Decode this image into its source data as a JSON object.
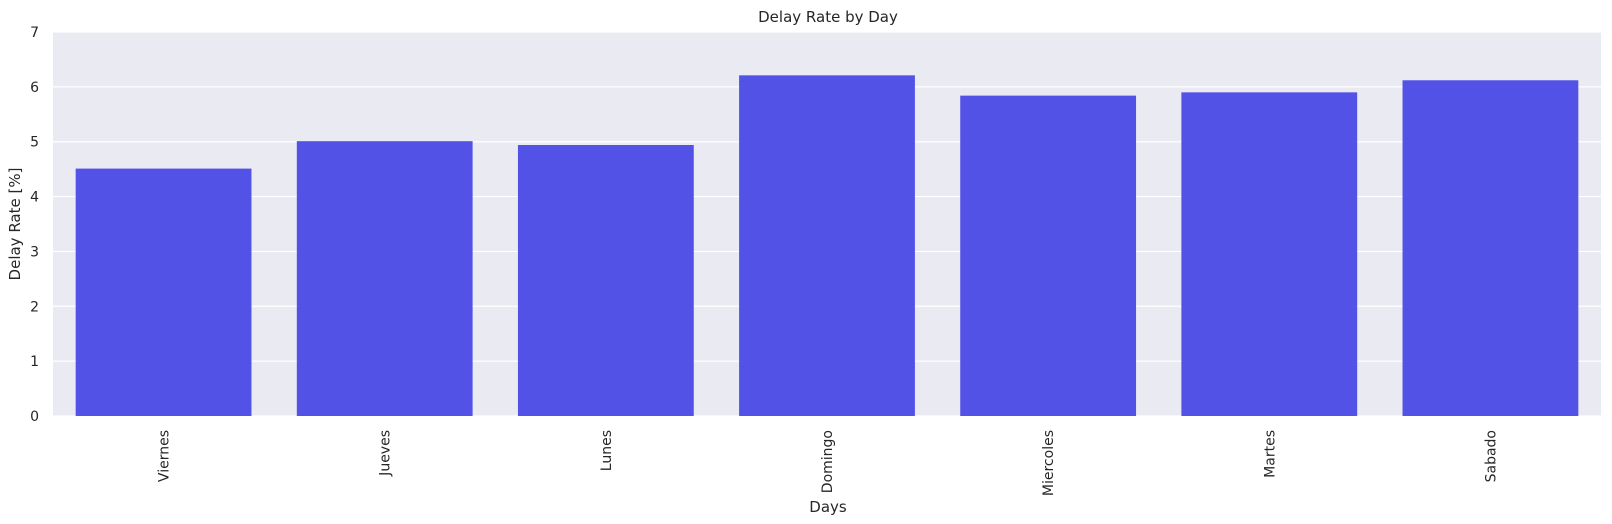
{
  "chart_data": {
    "type": "bar",
    "title": "Delay Rate by Day",
    "xlabel": "Days",
    "ylabel": "Delay Rate [%]",
    "categories": [
      "Viernes",
      "Jueves",
      "Lunes",
      "Domingo",
      "Miercoles",
      "Martes",
      "Sabado"
    ],
    "values": [
      4.51,
      5.01,
      4.94,
      6.21,
      5.84,
      5.9,
      6.12
    ],
    "ylim": [
      0,
      7
    ],
    "yticks": [
      "0",
      "1",
      "2",
      "3",
      "4",
      "5",
      "6",
      "7"
    ],
    "grid": true,
    "legend": "none",
    "colors": {
      "bar": "#4444e6",
      "plot_background": "#eaeaf2",
      "grid": "#ffffff",
      "text": "#262626"
    }
  }
}
